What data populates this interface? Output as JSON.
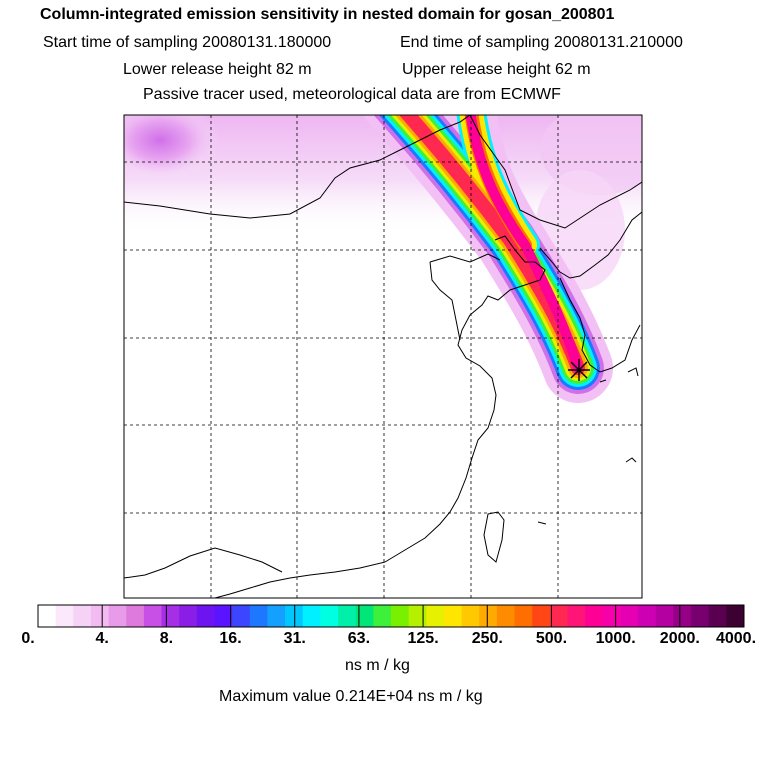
{
  "header": {
    "title": "Column-integrated emission sensitivity in nested domain for gosan_200801",
    "start_time": "Start time of sampling 20080131.180000",
    "end_time": "End time of sampling 20080131.210000",
    "lower_height": "Lower release height   82 m",
    "upper_height": "Upper release height   62 m",
    "tracer_note": "Passive tracer used, meteorological data are from ECMWF"
  },
  "colorbar": {
    "tick_labels": [
      "0.",
      "4.",
      "8.",
      "16.",
      "31.",
      "63.",
      "125.",
      "250.",
      "500.",
      "1000.",
      "2000.",
      "4000."
    ],
    "units": "ns m / kg",
    "colors": [
      "#ffffff",
      "#fbe8fb",
      "#f6d2f6",
      "#f2bcf2",
      "#e89be8",
      "#de7ade",
      "#c850e6",
      "#a62ee6",
      "#8a1ee6",
      "#6e14f0",
      "#5a14ff",
      "#3c46ff",
      "#1e78ff",
      "#14a0ff",
      "#00c8ff",
      "#00f0ff",
      "#00ffe1",
      "#00f0aa",
      "#00e678",
      "#3cf03c",
      "#78f000",
      "#b4f000",
      "#e6f000",
      "#ffe600",
      "#ffc800",
      "#ffaa00",
      "#ff8c00",
      "#ff6e00",
      "#ff4614",
      "#ff2850",
      "#ff1478",
      "#ff0096",
      "#f500aa",
      "#e600b4",
      "#cd00b4",
      "#b400a0",
      "#960087",
      "#78006e",
      "#5a0050",
      "#3c0032"
    ]
  },
  "max_value": "Maximum value  0.214E+04 ns m / kg",
  "map": {
    "receptor_marker": "star-marker",
    "grid": "dashed"
  }
}
